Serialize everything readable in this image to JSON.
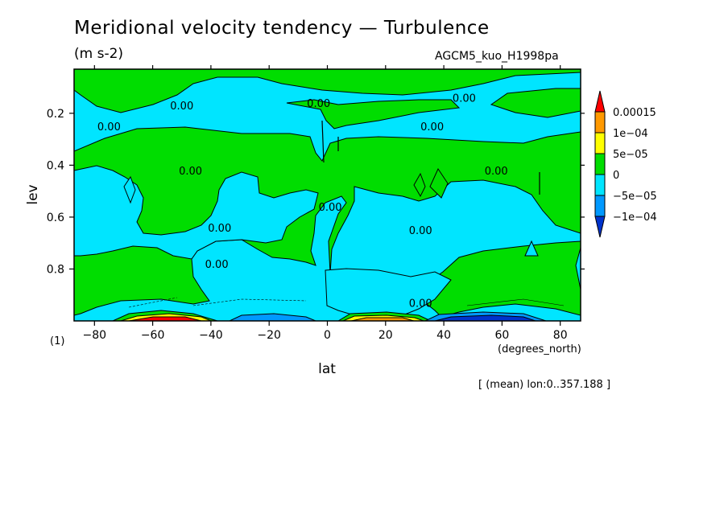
{
  "header": {
    "title": "Meridional velocity tendency — Turbulence",
    "units": "(m s-2)",
    "source": "AGCM5_kuo_H1998pa"
  },
  "footer": {
    "z_level": "(1)",
    "mean_note": "[ (mean) lon:0..357.188 ]"
  },
  "colors": {
    "red": "#ff0000",
    "orange": "#ff9900",
    "yellow": "#ffff00",
    "green": "#00dd00",
    "cyan": "#00e5ff",
    "blue": "#0099ff",
    "dark_blue": "#0033cc"
  },
  "chart_data": {
    "type": "heatmap",
    "xlabel": "lat",
    "xunits": "(degrees_north)",
    "ylabel": "lev",
    "xlim": [
      -87,
      87
    ],
    "ylim": [
      1,
      0.03
    ],
    "xticks": [
      -80,
      -60,
      -40,
      -20,
      0,
      20,
      40,
      60,
      80
    ],
    "xticklabels": [
      "−80",
      "−60",
      "−40",
      "−20",
      "0",
      "20",
      "40",
      "60",
      "80"
    ],
    "yticks": [
      0.2,
      0.4,
      0.6,
      0.8
    ],
    "yticklabels": [
      "0.2",
      "0.4",
      "0.6",
      "0.8"
    ],
    "contour_labels": [
      {
        "text": "0.00",
        "lat": -50,
        "lev": 0.17
      },
      {
        "text": "0.00",
        "lat": -75,
        "lev": 0.25
      },
      {
        "text": "0.00",
        "lat": -47,
        "lev": 0.42
      },
      {
        "text": "0.00",
        "lat": -3,
        "lev": 0.16
      },
      {
        "text": "0.00",
        "lat": 36,
        "lev": 0.25
      },
      {
        "text": "0.00",
        "lat": 47,
        "lev": 0.14
      },
      {
        "text": "0.00",
        "lat": 58,
        "lev": 0.42
      },
      {
        "text": "0.00",
        "lat": -37,
        "lev": 0.64
      },
      {
        "text": "0.00",
        "lat": -38,
        "lev": 0.78
      },
      {
        "text": "0.00",
        "lat": 1,
        "lev": 0.56
      },
      {
        "text": "0.00",
        "lat": 32,
        "lev": 0.65
      },
      {
        "text": "0.00",
        "lat": 32,
        "lev": 0.93
      }
    ],
    "colorbar": {
      "labels": [
        "0.00015",
        "1e−04",
        "5e−05",
        "0",
        "−5e−05",
        "−1e−04"
      ],
      "colors": [
        "#ff0000",
        "#ff9900",
        "#ffff00",
        "#00dd00",
        "#00e5ff",
        "#0099ff",
        "#0033cc"
      ]
    }
  }
}
